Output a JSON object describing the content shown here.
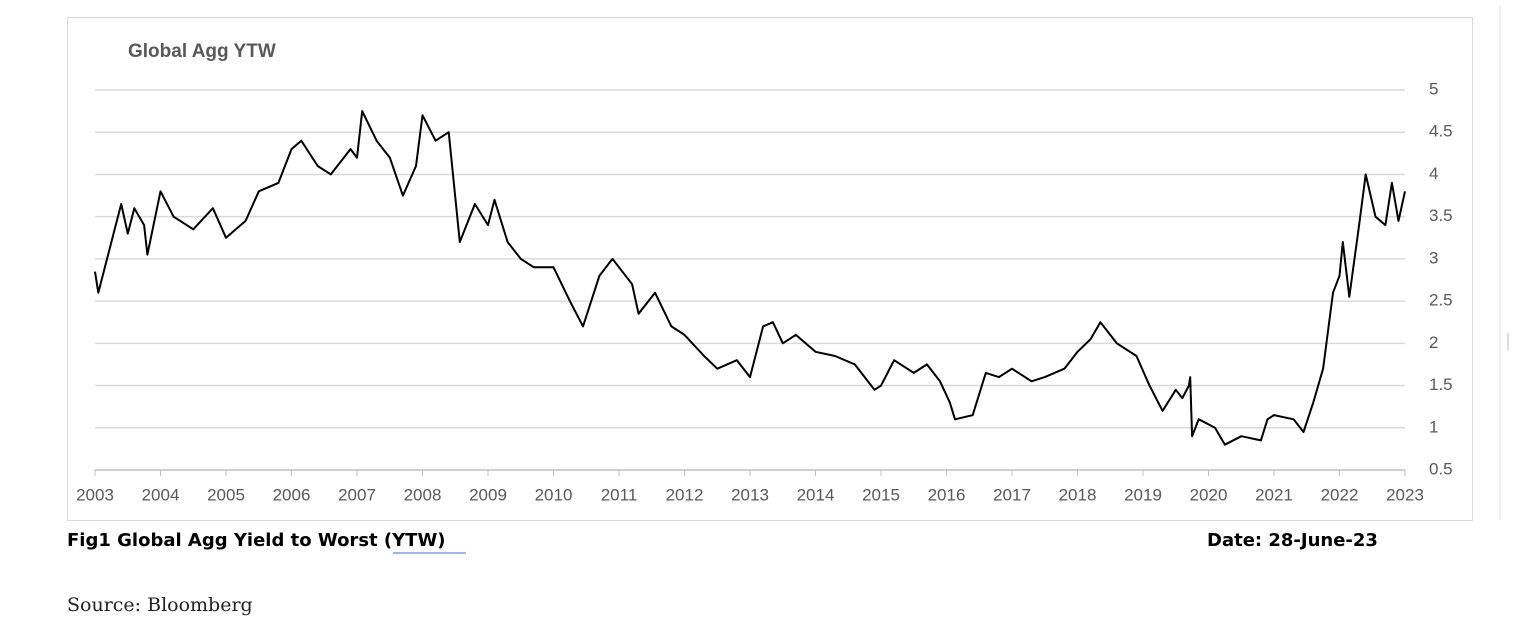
{
  "chart_data": {
    "type": "line",
    "title": "Global Agg YTW",
    "x": [
      2003.0,
      2003.05,
      2003.25,
      2003.4,
      2003.5,
      2003.6,
      2003.75,
      2003.8,
      2004.0,
      2004.2,
      2004.5,
      2004.8,
      2005.0,
      2005.3,
      2005.5,
      2005.8,
      2006.0,
      2006.15,
      2006.4,
      2006.6,
      2006.9,
      2007.0,
      2007.08,
      2007.3,
      2007.5,
      2007.7,
      2007.9,
      2008.0,
      2008.2,
      2008.4,
      2008.57,
      2008.8,
      2009.0,
      2009.1,
      2009.3,
      2009.5,
      2009.7,
      2010.0,
      2010.25,
      2010.45,
      2010.7,
      2010.9,
      2011.2,
      2011.3,
      2011.55,
      2011.8,
      2012.0,
      2012.3,
      2012.5,
      2012.8,
      2013.0,
      2013.2,
      2013.35,
      2013.5,
      2013.7,
      2014.0,
      2014.3,
      2014.6,
      2014.9,
      2015.0,
      2015.2,
      2015.5,
      2015.7,
      2015.9,
      2016.05,
      2016.13,
      2016.4,
      2016.6,
      2016.8,
      2017.0,
      2017.3,
      2017.5,
      2017.8,
      2018.0,
      2018.2,
      2018.35,
      2018.6,
      2018.9,
      2019.1,
      2019.3,
      2019.5,
      2019.6,
      2019.7,
      2019.72,
      2019.75,
      2019.85,
      2020.1,
      2020.25,
      2020.5,
      2020.8,
      2020.9,
      2021.0,
      2021.3,
      2021.45,
      2021.6,
      2021.75,
      2021.9,
      2022.0,
      2022.05,
      2022.15,
      2022.3,
      2022.4,
      2022.55,
      2022.7,
      2022.8,
      2022.9,
      2023.0
    ],
    "values": [
      2.85,
      2.6,
      3.2,
      3.65,
      3.3,
      3.6,
      3.4,
      3.05,
      3.8,
      3.5,
      3.35,
      3.6,
      3.25,
      3.45,
      3.8,
      3.9,
      4.3,
      4.4,
      4.1,
      4.0,
      4.3,
      4.2,
      4.75,
      4.4,
      4.2,
      3.75,
      4.1,
      4.7,
      4.4,
      4.5,
      3.2,
      3.65,
      3.4,
      3.7,
      3.2,
      3.0,
      2.9,
      2.9,
      2.5,
      2.2,
      2.8,
      3.0,
      2.7,
      2.35,
      2.6,
      2.2,
      2.1,
      1.85,
      1.7,
      1.8,
      1.6,
      2.2,
      2.25,
      2.0,
      2.1,
      1.9,
      1.85,
      1.75,
      1.45,
      1.5,
      1.8,
      1.65,
      1.75,
      1.55,
      1.3,
      1.1,
      1.15,
      1.65,
      1.6,
      1.7,
      1.55,
      1.6,
      1.7,
      1.9,
      2.05,
      2.25,
      2.0,
      1.85,
      1.5,
      1.2,
      1.45,
      1.35,
      1.5,
      1.6,
      0.9,
      1.1,
      1.0,
      0.8,
      0.9,
      0.85,
      1.1,
      1.15,
      1.1,
      0.95,
      1.3,
      1.7,
      2.6,
      2.8,
      3.2,
      2.55,
      3.4,
      4.0,
      3.5,
      3.4,
      3.9,
      3.45,
      3.8
    ],
    "color": "#000000",
    "xlim": [
      2003,
      2023
    ],
    "xticks": [
      2003,
      2004,
      2005,
      2006,
      2007,
      2008,
      2009,
      2010,
      2011,
      2012,
      2013,
      2014,
      2015,
      2016,
      2017,
      2018,
      2019,
      2020,
      2021,
      2022,
      2023
    ],
    "ylim": [
      0.5,
      5
    ],
    "yticks": [
      0.5,
      1,
      1.5,
      2,
      2.5,
      3,
      3.5,
      4,
      4.5,
      5
    ],
    "grid": true
  },
  "caption": "Fig1 Global Agg Yield to Worst (YTW)",
  "date": "Date: 28-June-23",
  "source": "Source: Bloomberg"
}
